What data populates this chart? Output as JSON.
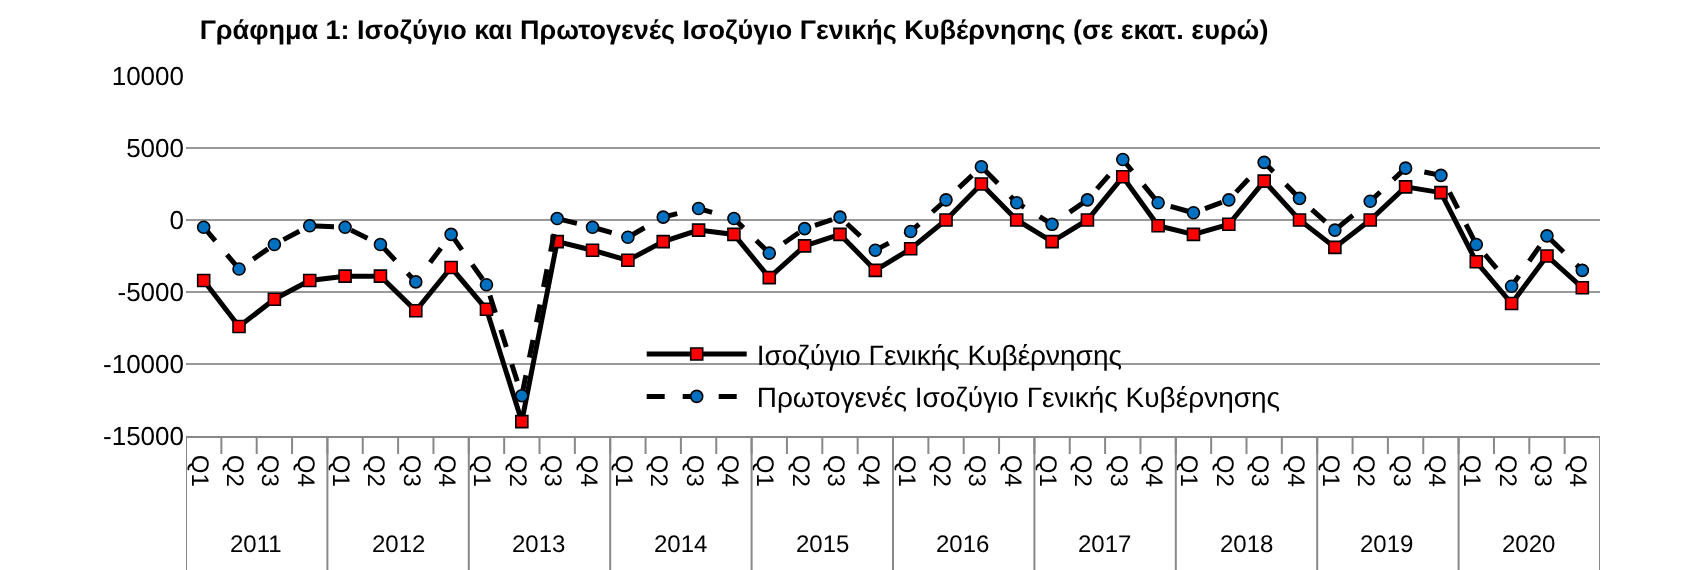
{
  "chart_data": {
    "type": "line",
    "title": "Γράφημα 1: Ισοζύγιο και Πρωτογενές Ισοζύγιο Γενικής Κυβέρνησης (σε εκατ. ευρώ)",
    "categories": [
      "Q1",
      "Q2",
      "Q3",
      "Q4",
      "Q1",
      "Q2",
      "Q3",
      "Q4",
      "Q1",
      "Q2",
      "Q3",
      "Q4",
      "Q1",
      "Q2",
      "Q3",
      "Q4",
      "Q1",
      "Q2",
      "Q3",
      "Q4",
      "Q1",
      "Q2",
      "Q3",
      "Q4",
      "Q1",
      "Q2",
      "Q3",
      "Q4",
      "Q1",
      "Q2",
      "Q3",
      "Q4",
      "Q1",
      "Q2",
      "Q3",
      "Q4",
      "Q1",
      "Q2",
      "Q3",
      "Q4"
    ],
    "annotations": [
      "2011",
      "2012",
      "2013",
      "2014",
      "2015",
      "2016",
      "2017",
      "2018",
      "2019",
      "2020"
    ],
    "series": [
      {
        "name": "Ισοζύγιο Γενικής Κυβέρνησης",
        "color": "#ff0000",
        "marker": "square",
        "line_style": "solid",
        "values": [
          -4200,
          -7400,
          -5500,
          -4200,
          -3900,
          -3900,
          -6300,
          -3300,
          -6200,
          -14000,
          -1500,
          -2100,
          -2800,
          -1500,
          -700,
          -1000,
          -4000,
          -1800,
          -1000,
          -3500,
          -2000,
          0,
          2500,
          0,
          -1500,
          0,
          3000,
          -400,
          -1000,
          -300,
          2700,
          0,
          -1900,
          0,
          2300,
          1900,
          -2900,
          -5800,
          -2500,
          -4700
        ]
      },
      {
        "name": "Πρωτογενές Ισοζύγιο Γενικής Κυβέρνησης",
        "color": "#0070c0",
        "marker": "circle",
        "line_style": "dashed",
        "values": [
          -500,
          -3400,
          -1700,
          -400,
          -500,
          -1700,
          -4300,
          -1000,
          -4500,
          -12200,
          100,
          -500,
          -1200,
          200,
          800,
          100,
          -2300,
          -600,
          200,
          -2100,
          -800,
          1400,
          3700,
          1200,
          -300,
          1400,
          4200,
          1200,
          500,
          1400,
          4000,
          1500,
          -700,
          1300,
          3600,
          3100,
          -1700,
          -4600,
          -1100,
          -3500
        ]
      }
    ],
    "ylim": [
      -15000,
      10000
    ],
    "yticks": [
      -15000,
      -10000,
      -5000,
      0,
      5000,
      10000
    ],
    "grid": "y",
    "legend": "bottom"
  }
}
